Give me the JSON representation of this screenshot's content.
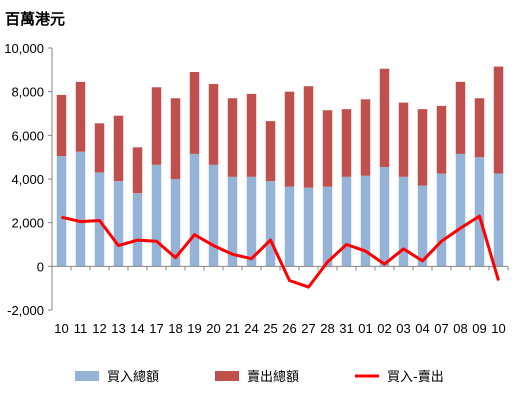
{
  "chart_data": {
    "type": "bar",
    "unit_label": "百萬港元",
    "categories": [
      "10",
      "11",
      "12",
      "13",
      "14",
      "17",
      "18",
      "19",
      "20",
      "21",
      "24",
      "25",
      "26",
      "27",
      "28",
      "31",
      "01",
      "02",
      "03",
      "04",
      "07",
      "08",
      "09",
      "10"
    ],
    "series": [
      {
        "name": "買入總額",
        "kind": "stacked-bar",
        "color": "#95B3D7",
        "values": [
          5050,
          5250,
          4300,
          3900,
          3350,
          4650,
          4000,
          5150,
          4650,
          4100,
          4100,
          3900,
          3650,
          3600,
          3650,
          4100,
          4150,
          4550,
          4100,
          3700,
          4250,
          5150,
          5000,
          4250
        ]
      },
      {
        "name": "賣出總額",
        "kind": "stacked-bar",
        "color": "#C0504D",
        "values": [
          2800,
          3200,
          2250,
          3000,
          2100,
          3550,
          3700,
          3750,
          3700,
          3600,
          3800,
          2750,
          4350,
          4650,
          3500,
          3100,
          3500,
          4500,
          3400,
          3500,
          3100,
          3300,
          2700,
          4900
        ]
      },
      {
        "name": "買入-賣出",
        "kind": "line",
        "color": "#FF0000",
        "values": [
          2250,
          2050,
          2100,
          950,
          1200,
          1150,
          400,
          1450,
          950,
          550,
          350,
          1200,
          -650,
          -950,
          200,
          1000,
          700,
          100,
          800,
          250,
          1150,
          1750,
          2300,
          -650
        ]
      }
    ],
    "ylim": [
      -2000,
      10000
    ],
    "yticks": [
      -2000,
      0,
      2000,
      4000,
      6000,
      8000,
      10000
    ],
    "ytick_labels": [
      "-2,000",
      "0",
      "2,000",
      "4,000",
      "6,000",
      "8,000",
      "10,000"
    ],
    "legend_position": "bottom",
    "grid": false
  }
}
